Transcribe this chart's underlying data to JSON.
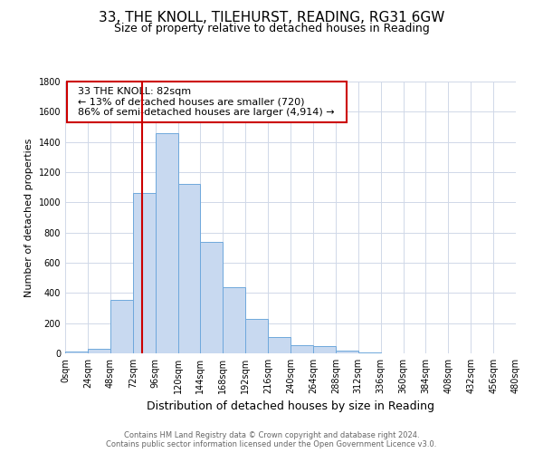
{
  "title": "33, THE KNOLL, TILEHURST, READING, RG31 6GW",
  "subtitle": "Size of property relative to detached houses in Reading",
  "xlabel": "Distribution of detached houses by size in Reading",
  "ylabel": "Number of detached properties",
  "footnote1": "Contains HM Land Registry data © Crown copyright and database right 2024.",
  "footnote2": "Contains public sector information licensed under the Open Government Licence v3.0.",
  "bin_edges": [
    0,
    24,
    48,
    72,
    96,
    120,
    144,
    168,
    192,
    216,
    240,
    264,
    288,
    312,
    336,
    360,
    384,
    408,
    432,
    456,
    480
  ],
  "bar_heights": [
    15,
    30,
    355,
    1065,
    1460,
    1120,
    740,
    440,
    230,
    110,
    55,
    50,
    20,
    5,
    2,
    1,
    0,
    0,
    0,
    0
  ],
  "bar_color": "#c8d9f0",
  "bar_edge_color": "#6fa8dc",
  "annotation_box_edge": "#cc0000",
  "property_line_color": "#cc0000",
  "property_value": 82,
  "annotation_title": "33 THE KNOLL: 82sqm",
  "annotation_line1": "← 13% of detached houses are smaller (720)",
  "annotation_line2": "86% of semi-detached houses are larger (4,914) →",
  "ylim": [
    0,
    1800
  ],
  "yticks": [
    0,
    200,
    400,
    600,
    800,
    1000,
    1200,
    1400,
    1600,
    1800
  ],
  "background_color": "#ffffff",
  "grid_color": "#d0d8e8",
  "title_fontsize": 11,
  "subtitle_fontsize": 9,
  "ylabel_fontsize": 8,
  "xlabel_fontsize": 9,
  "tick_fontsize": 7,
  "annotation_fontsize": 8,
  "footnote_fontsize": 6
}
